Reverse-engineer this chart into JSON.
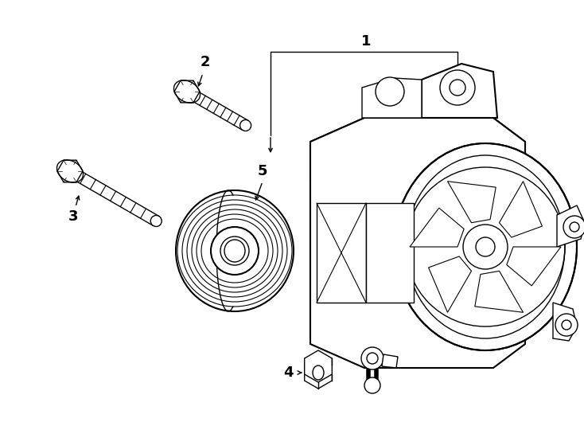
{
  "bg_color": "#ffffff",
  "line_color": "#000000",
  "lw": 1.0,
  "lw_thick": 1.5,
  "label_fontsize": 13,
  "label_fontweight": "bold",
  "fig_w": 7.34,
  "fig_h": 5.4,
  "dpi": 100
}
